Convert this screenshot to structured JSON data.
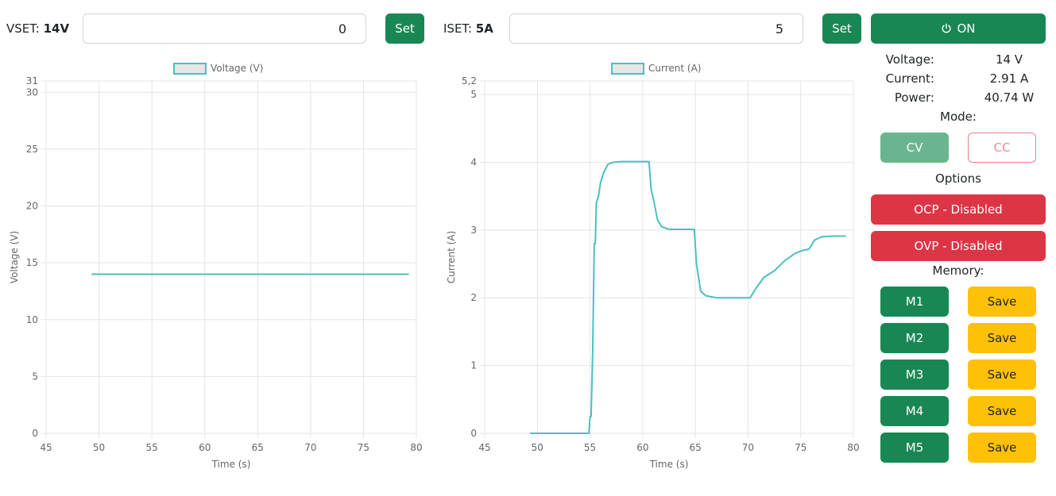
{
  "vset": {
    "label": "VSET: ",
    "value_label": "14V",
    "input_value": "0",
    "button": "Set"
  },
  "iset": {
    "label": "ISET: ",
    "value_label": "5A",
    "input_value": "5",
    "button": "Set"
  },
  "power_button": {
    "icon": "power-icon",
    "label": "ON"
  },
  "readings": {
    "voltage": {
      "label": "Voltage:",
      "value": "14 V"
    },
    "current": {
      "label": "Current:",
      "value": "2.91 A"
    },
    "power": {
      "label": "Power:",
      "value": "40.74 W"
    }
  },
  "mode": {
    "label": "Mode:",
    "cv": "CV",
    "cc": "CC",
    "active": "CV"
  },
  "options": {
    "label": "Options",
    "ocp": "OCP - Disabled",
    "ovp": "OVP - Disabled"
  },
  "memory": {
    "label": "Memory:",
    "slots": [
      {
        "name": "M1",
        "save": "Save"
      },
      {
        "name": "M2",
        "save": "Save"
      },
      {
        "name": "M3",
        "save": "Save"
      },
      {
        "name": "M4",
        "save": "Save"
      },
      {
        "name": "M5",
        "save": "Save"
      }
    ]
  },
  "colors": {
    "accent": "#198754",
    "danger": "#dc3545",
    "warning": "#ffc107",
    "series": "#4bc0c0"
  },
  "chart_data": [
    {
      "type": "line",
      "legend": "Voltage (V)",
      "xlabel": "Time (s)",
      "ylabel": "Voltage (V)",
      "xlim": [
        45,
        80
      ],
      "ylim": [
        0,
        31
      ],
      "xticks": [
        45,
        50,
        55,
        60,
        65,
        70,
        75,
        80
      ],
      "yticks": [
        0,
        5,
        10,
        15,
        20,
        25,
        30,
        31
      ],
      "grid": true,
      "legend_position": "top",
      "series": [
        {
          "name": "Voltage (V)",
          "points": [
            [
              49.3,
              14
            ],
            [
              79.3,
              14
            ]
          ]
        }
      ]
    },
    {
      "type": "line",
      "legend": "Current (A)",
      "xlabel": "Time (s)",
      "ylabel": "Current (A)",
      "xlim": [
        45,
        80
      ],
      "ylim": [
        0,
        5.2
      ],
      "xticks": [
        45,
        50,
        55,
        60,
        65,
        70,
        75,
        80
      ],
      "yticks": [
        0,
        1,
        2,
        3,
        4,
        5,
        5.2
      ],
      "ytick_labels": [
        "0",
        "1",
        "2",
        "3",
        "4",
        "5",
        "5,2"
      ],
      "grid": true,
      "legend_position": "top",
      "series": [
        {
          "name": "Current (A)",
          "points": [
            [
              49.3,
              0
            ],
            [
              54.9,
              0
            ],
            [
              55.0,
              0.25
            ],
            [
              55.1,
              0.25
            ],
            [
              55.25,
              1.2
            ],
            [
              55.4,
              2.8
            ],
            [
              55.5,
              2.8
            ],
            [
              55.6,
              3.4
            ],
            [
              55.8,
              3.5
            ],
            [
              56.0,
              3.7
            ],
            [
              56.3,
              3.85
            ],
            [
              56.7,
              3.97
            ],
            [
              57.2,
              4.0
            ],
            [
              58.0,
              4.01
            ],
            [
              60.6,
              4.01
            ],
            [
              60.8,
              3.6
            ],
            [
              61.1,
              3.4
            ],
            [
              61.4,
              3.15
            ],
            [
              61.8,
              3.05
            ],
            [
              62.5,
              3.01
            ],
            [
              64.9,
              3.01
            ],
            [
              65.1,
              2.5
            ],
            [
              65.5,
              2.1
            ],
            [
              66.0,
              2.03
            ],
            [
              67.0,
              2.0
            ],
            [
              70.2,
              2.0
            ],
            [
              70.8,
              2.15
            ],
            [
              71.5,
              2.3
            ],
            [
              72.5,
              2.4
            ],
            [
              73.5,
              2.55
            ],
            [
              74.5,
              2.66
            ],
            [
              75.2,
              2.7
            ],
            [
              75.8,
              2.72
            ],
            [
              76.3,
              2.85
            ],
            [
              77.0,
              2.9
            ],
            [
              78.0,
              2.91
            ],
            [
              79.3,
              2.91
            ]
          ]
        }
      ]
    }
  ]
}
